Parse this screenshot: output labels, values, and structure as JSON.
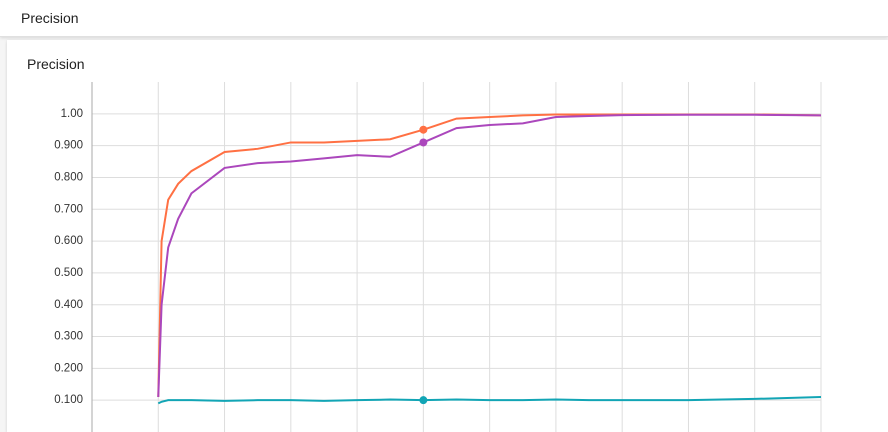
{
  "header": {
    "title": "Precision"
  },
  "chart_data": {
    "type": "line",
    "title": "Precision",
    "x": [
      0,
      0.05,
      0.15,
      0.3,
      0.5,
      1,
      1.5,
      2,
      2.5,
      3,
      3.5,
      4,
      4.5,
      5,
      5.5,
      6,
      6.5,
      7,
      8,
      9,
      10
    ],
    "series": [
      {
        "name": "orange",
        "color": "#ff7043",
        "values": [
          0.11,
          0.6,
          0.73,
          0.78,
          0.82,
          0.88,
          0.89,
          0.91,
          0.91,
          0.915,
          0.92,
          0.95,
          0.985,
          0.99,
          0.995,
          0.998,
          0.998,
          0.998,
          0.998,
          0.998,
          0.995
        ]
      },
      {
        "name": "purple",
        "color": "#ab47bc",
        "values": [
          0.11,
          0.4,
          0.58,
          0.67,
          0.75,
          0.83,
          0.845,
          0.85,
          0.86,
          0.87,
          0.865,
          0.91,
          0.955,
          0.965,
          0.97,
          0.99,
          0.993,
          0.996,
          0.997,
          0.997,
          0.995
        ]
      },
      {
        "name": "teal",
        "color": "#12a5b5",
        "values": [
          0.09,
          0.095,
          0.1,
          0.1,
          0.1,
          0.098,
          0.1,
          0.1,
          0.098,
          0.1,
          0.102,
          0.1,
          0.102,
          0.1,
          0.1,
          0.102,
          0.1,
          0.1,
          0.1,
          0.104,
          0.11
        ]
      }
    ],
    "xlim": [
      -1,
      10
    ],
    "ylim": [
      0,
      1.1
    ],
    "yticks": [
      {
        "value": 0.1,
        "label": "0.100"
      },
      {
        "value": 0.2,
        "label": "0.200"
      },
      {
        "value": 0.3,
        "label": "0.300"
      },
      {
        "value": 0.4,
        "label": "0.400"
      },
      {
        "value": 0.5,
        "label": "0.500"
      },
      {
        "value": 0.6,
        "label": "0.600"
      },
      {
        "value": 0.7,
        "label": "0.700"
      },
      {
        "value": 0.8,
        "label": "0.800"
      },
      {
        "value": 0.9,
        "label": "0.900"
      },
      {
        "value": 1,
        "label": "1.00"
      }
    ],
    "grid": true
  }
}
